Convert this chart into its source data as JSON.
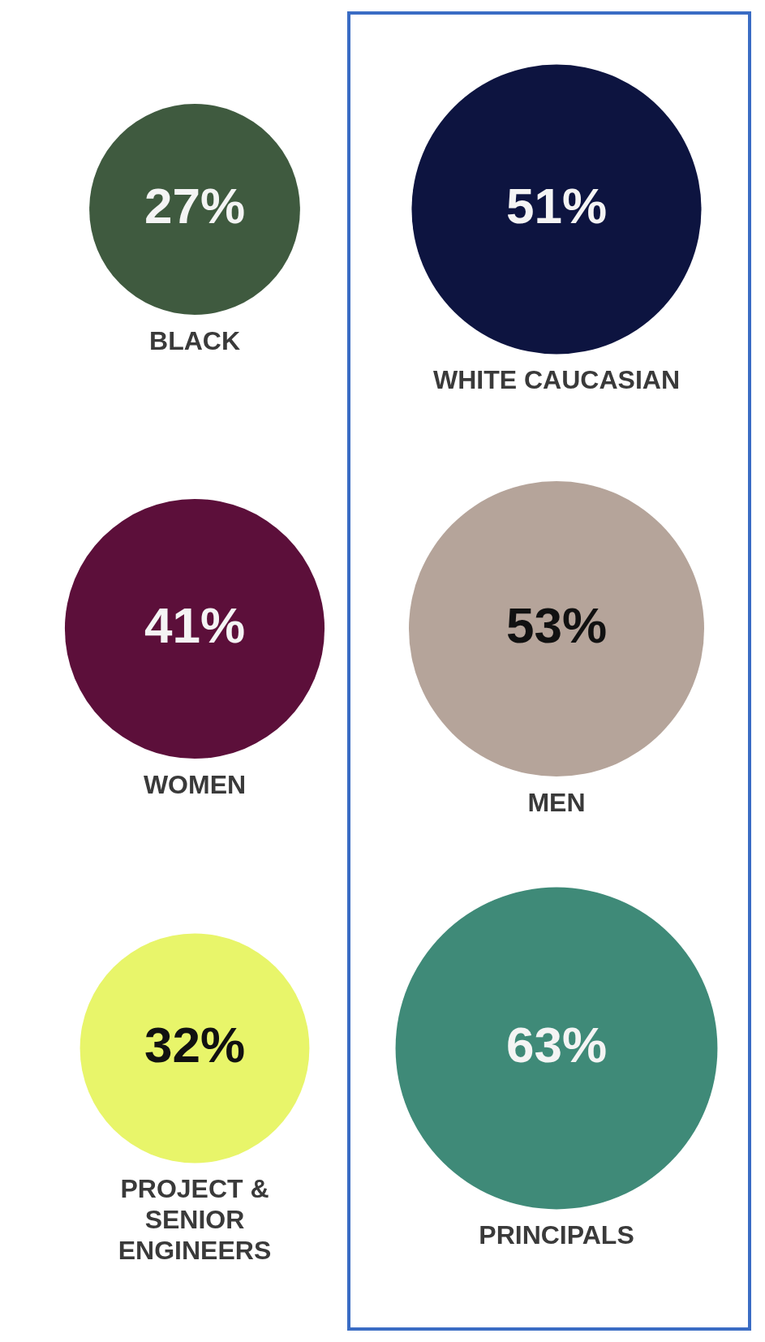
{
  "chart_data": {
    "type": "other",
    "categories": [
      "BLACK",
      "WHITE CAUCASIAN",
      "WOMEN",
      "MEN",
      "PROJECT & SENIOR ENGINEERS",
      "PRINCIPALS"
    ],
    "values": [
      27,
      51,
      41,
      53,
      32,
      63
    ],
    "colors": [
      "#3f5a3f",
      "#0d1440",
      "#5c0f3a",
      "#b5a49a",
      "#e8f56a",
      "#3f8a78"
    ],
    "value_labels": [
      "27%",
      "51%",
      "41%",
      "53%",
      "32%",
      "63%"
    ]
  }
}
